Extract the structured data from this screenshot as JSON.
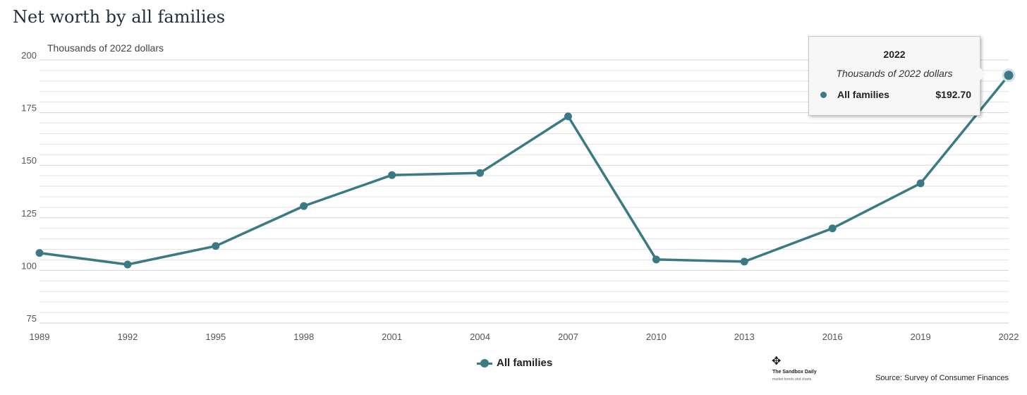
{
  "title": "Net worth by all families",
  "source": "Source: Survey of Consumer Finances",
  "watermark": {
    "name": "The Sandbox Daily",
    "tagline": "market trends and charts",
    "icon": "move-cross-icon"
  },
  "legend": {
    "label": "All families"
  },
  "tooltip": {
    "year": "2022",
    "unit": "Thousands of 2022 dollars",
    "series": "All families",
    "value": "$192.70"
  },
  "chart_data": {
    "type": "line",
    "title": "Net worth by all families",
    "ylabel": "Thousands of 2022 dollars",
    "x": [
      "1989",
      "1992",
      "1995",
      "1998",
      "2001",
      "2004",
      "2007",
      "2010",
      "2013",
      "2016",
      "2019",
      "2022"
    ],
    "series": [
      {
        "name": "All families",
        "values": [
          108.3,
          102.8,
          111.6,
          130.6,
          145.3,
          146.3,
          173.2,
          105.2,
          104.2,
          120.0,
          141.4,
          192.7
        ]
      }
    ],
    "ylim": [
      75,
      200
    ],
    "yticks": [
      75,
      100,
      125,
      150,
      175,
      200
    ],
    "color": "#3b7a85",
    "grid": true,
    "legend_position": "bottom-center",
    "highlighted_point": "2022"
  }
}
